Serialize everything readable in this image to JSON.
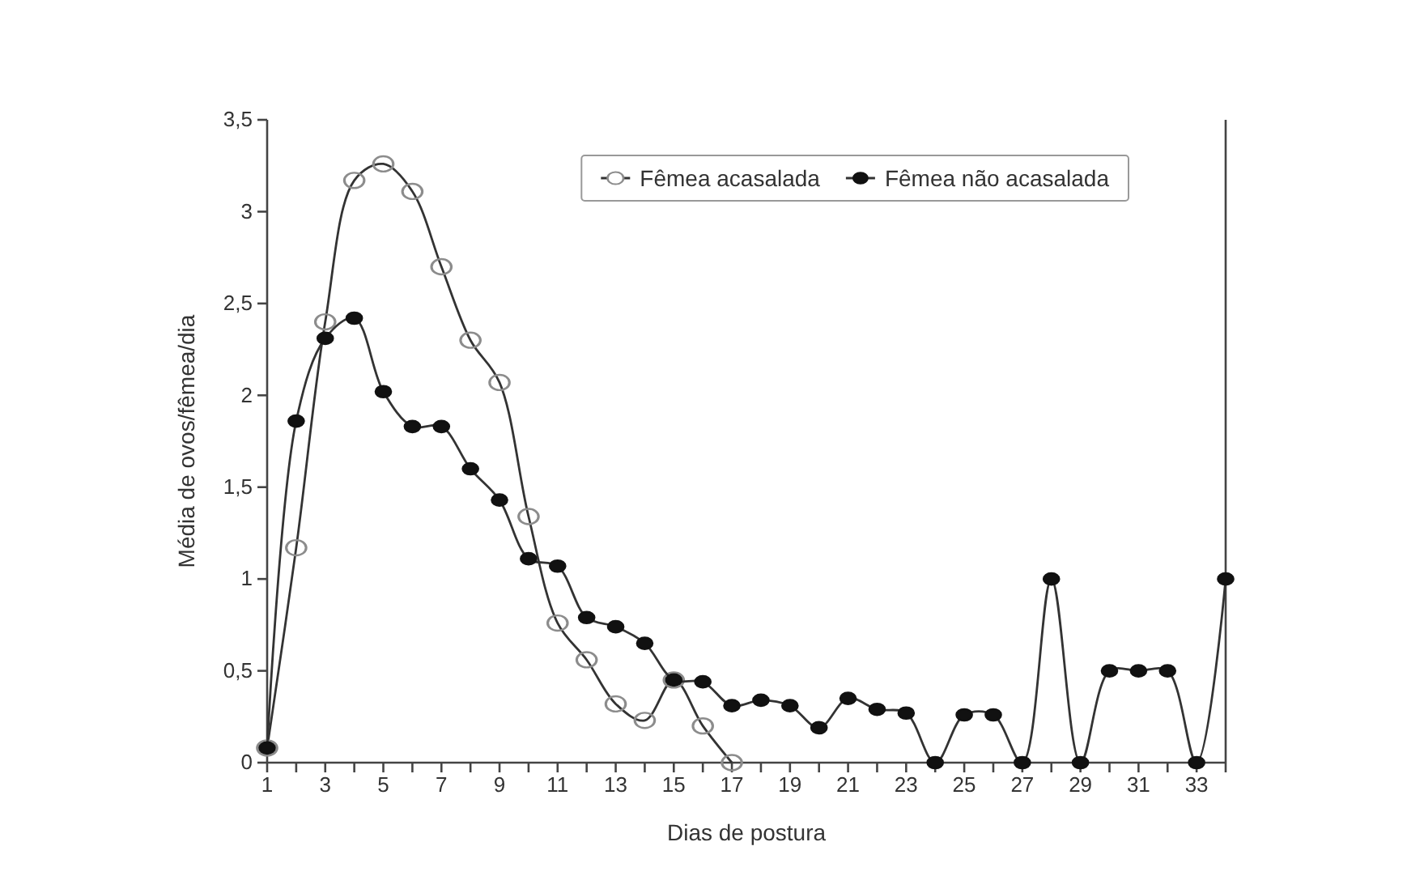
{
  "chart_data": {
    "type": "line",
    "xlabel": "Dias de postura",
    "ylabel": "Média de ovos/fêmea/dia",
    "xlim": [
      1,
      34
    ],
    "ylim": [
      0,
      3.5
    ],
    "xticks": [
      1,
      {
        "value": 2,
        "label": null
      },
      3,
      {
        "value": 4,
        "label": null
      },
      5,
      {
        "value": 6,
        "label": null
      },
      7,
      {
        "value": 8,
        "label": null
      },
      9,
      {
        "value": 10,
        "label": null
      },
      11,
      {
        "value": 12,
        "label": null
      },
      13,
      {
        "value": 14,
        "label": null
      },
      15,
      {
        "value": 16,
        "label": null
      },
      17,
      {
        "value": 18,
        "label": null
      },
      19,
      {
        "value": 20,
        "label": null
      },
      21,
      {
        "value": 22,
        "label": null
      },
      23,
      {
        "value": 24,
        "label": null
      },
      25,
      {
        "value": 26,
        "label": null
      },
      27,
      {
        "value": 28,
        "label": null
      },
      29,
      {
        "value": 30,
        "label": null
      },
      31,
      {
        "value": 32,
        "label": null
      },
      33,
      {
        "value": 34,
        "label": null
      }
    ],
    "yticks": [
      {
        "value": 0,
        "label": "0"
      },
      {
        "value": 0.5,
        "label": "0,5"
      },
      {
        "value": 1,
        "label": "1"
      },
      {
        "value": 1.5,
        "label": "1,5"
      },
      {
        "value": 2,
        "label": "2"
      },
      {
        "value": 2.5,
        "label": "2,5"
      },
      {
        "value": 3,
        "label": "3"
      },
      {
        "value": 3.5,
        "label": "3,5"
      }
    ],
    "marker": "circle",
    "legend": "top right",
    "grid": false,
    "series": [
      {
        "name": "Fêmea acasalada",
        "color": "#8c8c8c",
        "x": [
          1,
          2,
          3,
          4,
          5,
          6,
          7,
          8,
          9,
          10,
          11,
          12,
          13,
          14,
          15,
          16,
          17
        ],
        "values": [
          0.08,
          1.17,
          2.4,
          3.17,
          3.26,
          3.11,
          2.7,
          2.3,
          2.07,
          1.34,
          0.76,
          0.56,
          0.32,
          0.23,
          0.45,
          0.2,
          0
        ]
      },
      {
        "name": "Fêmea não acasalada",
        "color": "#111111",
        "x": [
          1,
          2,
          3,
          4,
          5,
          6,
          7,
          8,
          9,
          10,
          11,
          12,
          13,
          14,
          15,
          16,
          17,
          18,
          19,
          20,
          21,
          22,
          23,
          24,
          25,
          26,
          27,
          28,
          29,
          30,
          31,
          32,
          33,
          34
        ],
        "values": [
          0.08,
          1.86,
          2.31,
          2.42,
          2.02,
          1.83,
          1.83,
          1.6,
          1.43,
          1.11,
          1.07,
          0.79,
          0.74,
          0.65,
          0.45,
          0.44,
          0.31,
          0.34,
          0.31,
          0.19,
          0.35,
          0.29,
          0.27,
          0,
          0.26,
          0.26,
          0,
          1.0,
          0,
          0.5,
          0.5,
          0.5,
          0,
          1.0
        ]
      }
    ]
  }
}
